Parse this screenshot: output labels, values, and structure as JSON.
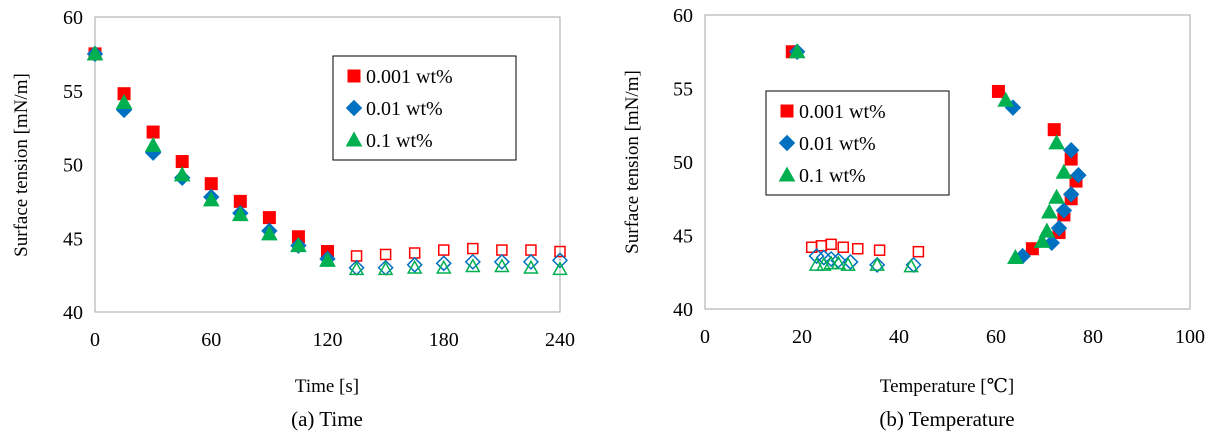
{
  "chart_data": [
    {
      "type": "scatter",
      "caption": "(a) Time",
      "xlabel": "Time [s]",
      "ylabel": "Surface tension [mN/m]",
      "xlim": [
        0,
        240
      ],
      "ylim": [
        40,
        60
      ],
      "xticks": [
        0,
        60,
        120,
        180,
        240
      ],
      "yticks": [
        40,
        45,
        50,
        55,
        60
      ],
      "legend_position": "top-right",
      "series": [
        {
          "name": "0.001 wt%",
          "marker": "square",
          "color": "#ff0000",
          "points": [
            [
              0,
              57.5
            ],
            [
              15,
              54.8
            ],
            [
              30,
              52.2
            ],
            [
              45,
              50.2
            ],
            [
              60,
              48.7
            ],
            [
              75,
              47.5
            ],
            [
              90,
              46.4
            ],
            [
              105,
              45.1
            ],
            [
              120,
              44.1
            ],
            [
              135,
              43.8
            ],
            [
              150,
              43.9
            ],
            [
              165,
              44.0
            ],
            [
              180,
              44.2
            ],
            [
              195,
              44.3
            ],
            [
              210,
              44.2
            ],
            [
              225,
              44.2
            ],
            [
              240,
              44.1
            ]
          ],
          "hollow_from_x": 135
        },
        {
          "name": "0.01 wt%",
          "marker": "diamond",
          "color": "#0070c0",
          "points": [
            [
              0,
              57.5
            ],
            [
              15,
              53.7
            ],
            [
              30,
              50.8
            ],
            [
              45,
              49.1
            ],
            [
              60,
              47.8
            ],
            [
              75,
              46.7
            ],
            [
              90,
              45.5
            ],
            [
              105,
              44.5
            ],
            [
              120,
              43.6
            ],
            [
              135,
              43.0
            ],
            [
              150,
              43.0
            ],
            [
              165,
              43.2
            ],
            [
              180,
              43.3
            ],
            [
              195,
              43.4
            ],
            [
              210,
              43.4
            ],
            [
              225,
              43.4
            ],
            [
              240,
              43.5
            ]
          ],
          "hollow_from_x": 135
        },
        {
          "name": "0.1 wt%",
          "marker": "triangle",
          "color": "#00b050",
          "points": [
            [
              0,
              57.5
            ],
            [
              15,
              54.2
            ],
            [
              30,
              51.3
            ],
            [
              45,
              49.3
            ],
            [
              60,
              47.6
            ],
            [
              75,
              46.6
            ],
            [
              90,
              45.3
            ],
            [
              105,
              44.5
            ],
            [
              120,
              43.5
            ],
            [
              135,
              42.9
            ],
            [
              150,
              42.9
            ],
            [
              165,
              43.0
            ],
            [
              180,
              43.0
            ],
            [
              195,
              43.1
            ],
            [
              210,
              43.1
            ],
            [
              225,
              43.0
            ],
            [
              240,
              42.9
            ]
          ],
          "hollow_from_x": 135
        }
      ]
    },
    {
      "type": "scatter",
      "caption": "(b) Temperature",
      "xlabel": "Temperature [℃]",
      "ylabel": "Surface tension [mN/m]",
      "xlim": [
        0,
        100
      ],
      "ylim": [
        40,
        60
      ],
      "xticks": [
        0,
        20,
        40,
        60,
        80,
        100
      ],
      "yticks": [
        40,
        45,
        50,
        55,
        60
      ],
      "legend_position": "center-left",
      "series": [
        {
          "name": "0.001 wt%",
          "marker": "square",
          "color": "#ff0000",
          "filled": [
            [
              18,
              57.5
            ],
            [
              60.5,
              54.8
            ],
            [
              72,
              52.2
            ],
            [
              75.5,
              50.2
            ],
            [
              76.5,
              48.7
            ],
            [
              75.5,
              47.5
            ],
            [
              74,
              46.4
            ],
            [
              73,
              45.2
            ],
            [
              67.5,
              44.1
            ]
          ],
          "hollow": [
            [
              22,
              44.2
            ],
            [
              24,
              44.3
            ],
            [
              26,
              44.4
            ],
            [
              28.5,
              44.2
            ],
            [
              31.5,
              44.1
            ],
            [
              36,
              44.0
            ],
            [
              44,
              43.9
            ]
          ]
        },
        {
          "name": "0.01 wt%",
          "marker": "diamond",
          "color": "#0070c0",
          "filled": [
            [
              19,
              57.5
            ],
            [
              63.5,
              53.7
            ],
            [
              75.5,
              50.8
            ],
            [
              77,
              49.1
            ],
            [
              75.5,
              47.8
            ],
            [
              74,
              46.7
            ],
            [
              73,
              45.5
            ],
            [
              71.5,
              44.5
            ],
            [
              65.5,
              43.6
            ]
          ],
          "hollow": [
            [
              23,
              43.6
            ],
            [
              24.5,
              43.5
            ],
            [
              26,
              43.4
            ],
            [
              27.5,
              43.3
            ],
            [
              30,
              43.2
            ],
            [
              35.5,
              43.0
            ],
            [
              43,
              43.0
            ]
          ]
        },
        {
          "name": "0.1 wt%",
          "marker": "triangle",
          "color": "#00b050",
          "filled": [
            [
              19,
              57.5
            ],
            [
              62,
              54.2
            ],
            [
              72.5,
              51.3
            ],
            [
              74,
              49.3
            ],
            [
              72.5,
              47.6
            ],
            [
              71,
              46.6
            ],
            [
              70.5,
              45.3
            ],
            [
              69.5,
              44.6
            ],
            [
              64,
              43.5
            ]
          ],
          "hollow": [
            [
              23,
              43.0
            ],
            [
              24.5,
              43.0
            ],
            [
              26,
              43.1
            ],
            [
              27.5,
              43.1
            ],
            [
              29.5,
              43.0
            ],
            [
              35.5,
              43.0
            ],
            [
              42.5,
              42.9
            ]
          ]
        }
      ]
    }
  ]
}
